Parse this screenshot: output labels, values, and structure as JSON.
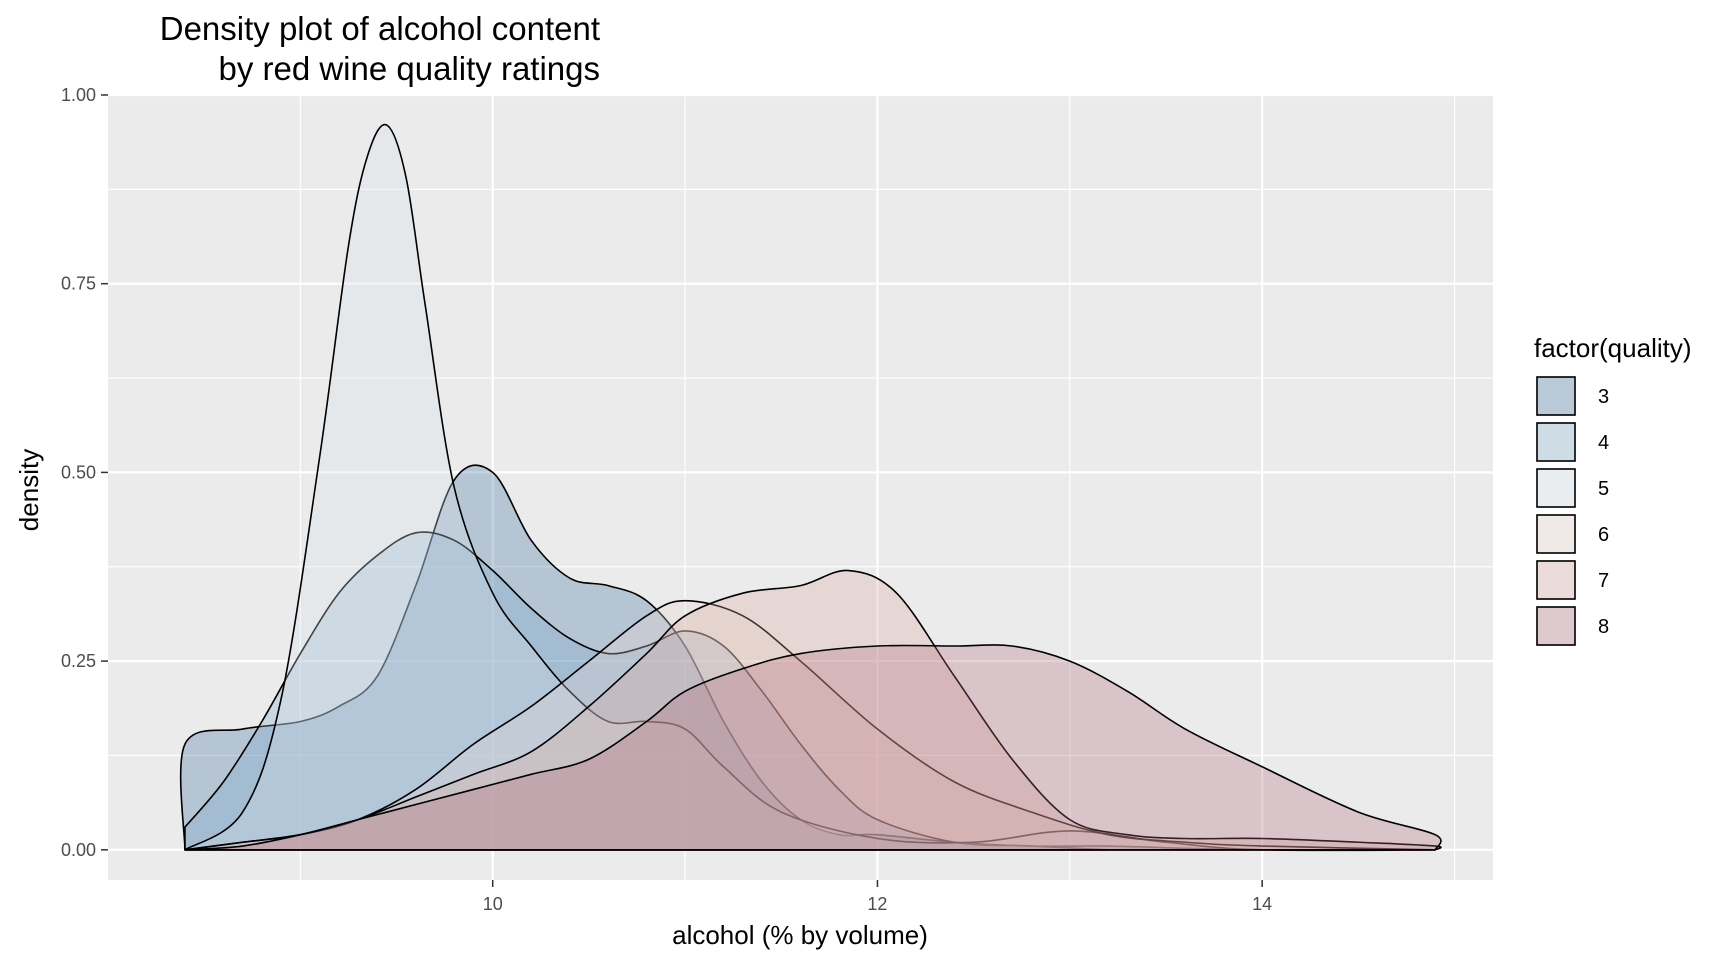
{
  "chart_data": {
    "type": "area",
    "title_lines": [
      "Density plot of alcohol content",
      "by red wine quality ratings"
    ],
    "xlabel": "alcohol (% by volume)",
    "ylabel": "density",
    "xlim": [
      8.0,
      15.2
    ],
    "ylim": [
      -0.04,
      1.0
    ],
    "x_ticks": [
      10,
      12,
      14
    ],
    "x_tick_labels": [
      "10",
      "12",
      "14"
    ],
    "y_ticks": [
      0.0,
      0.25,
      0.5,
      0.75,
      1.0
    ],
    "y_tick_labels": [
      "0.00",
      "0.25",
      "0.50",
      "0.75",
      "1.00"
    ],
    "x_minor_ticks": [
      9,
      11,
      13,
      15
    ],
    "y_minor_ticks": [
      0.125,
      0.375,
      0.625,
      0.875
    ],
    "grid": true,
    "legend_title": "factor(quality)",
    "legend_position": "right",
    "fill_opacity": 0.3,
    "series": [
      {
        "name": "3",
        "color": "#3c6e9e",
        "x": [
          8.4,
          8.4,
          8.7,
          9.0,
          9.2,
          9.4,
          9.6,
          9.8,
          10.0,
          10.2,
          10.4,
          10.6,
          10.8,
          11.0,
          11.2,
          11.4,
          11.6,
          11.8,
          12.0,
          12.4,
          12.8,
          13.2,
          13.6,
          14.0
        ],
        "y": [
          0.0,
          0.14,
          0.16,
          0.17,
          0.19,
          0.23,
          0.35,
          0.49,
          0.5,
          0.41,
          0.36,
          0.35,
          0.33,
          0.27,
          0.17,
          0.09,
          0.04,
          0.02,
          0.02,
          0.01,
          0.005,
          0.005,
          0.002,
          0.0
        ]
      },
      {
        "name": "4",
        "color": "#7ba9c9",
        "x": [
          8.4,
          8.6,
          8.8,
          9.0,
          9.2,
          9.4,
          9.6,
          9.8,
          10.0,
          10.2,
          10.4,
          10.6,
          10.8,
          11.0,
          11.2,
          11.4,
          11.6,
          11.8,
          12.0,
          12.4,
          12.8,
          13.2
        ],
        "y": [
          0.03,
          0.09,
          0.17,
          0.26,
          0.34,
          0.39,
          0.42,
          0.41,
          0.37,
          0.32,
          0.28,
          0.26,
          0.27,
          0.29,
          0.27,
          0.21,
          0.14,
          0.08,
          0.04,
          0.01,
          0.005,
          0.0
        ]
      },
      {
        "name": "5",
        "color": "#d8e2ea",
        "x": [
          8.4,
          8.7,
          8.9,
          9.1,
          9.25,
          9.35,
          9.45,
          9.55,
          9.65,
          9.8,
          10.0,
          10.2,
          10.4,
          10.6,
          10.8,
          11.0,
          11.2,
          11.5,
          12.0,
          12.5,
          13.0,
          13.5,
          14.0,
          14.9
        ],
        "y": [
          0.0,
          0.05,
          0.2,
          0.52,
          0.8,
          0.92,
          0.96,
          0.89,
          0.72,
          0.48,
          0.34,
          0.27,
          0.21,
          0.17,
          0.17,
          0.16,
          0.11,
          0.05,
          0.015,
          0.01,
          0.025,
          0.01,
          0.0,
          0.0
        ]
      },
      {
        "name": "6",
        "color": "#e9d7d2",
        "x": [
          8.4,
          8.7,
          9.0,
          9.3,
          9.6,
          9.9,
          10.2,
          10.5,
          10.8,
          11.0,
          11.3,
          11.6,
          12.0,
          12.4,
          12.8,
          13.2,
          13.6,
          14.0,
          14.9
        ],
        "y": [
          0.0,
          0.01,
          0.02,
          0.04,
          0.08,
          0.14,
          0.19,
          0.25,
          0.31,
          0.33,
          0.31,
          0.25,
          0.16,
          0.09,
          0.05,
          0.02,
          0.01,
          0.005,
          0.0
        ]
      },
      {
        "name": "7",
        "color": "#dba9a0",
        "x": [
          8.4,
          8.7,
          9.0,
          9.3,
          9.6,
          9.9,
          10.2,
          10.5,
          10.8,
          11.0,
          11.3,
          11.6,
          11.85,
          12.1,
          12.4,
          12.7,
          13.0,
          13.3,
          13.6,
          14.0,
          14.5,
          14.9,
          14.9
        ],
        "y": [
          0.0,
          0.01,
          0.02,
          0.04,
          0.07,
          0.1,
          0.13,
          0.19,
          0.26,
          0.31,
          0.34,
          0.35,
          0.37,
          0.34,
          0.23,
          0.12,
          0.04,
          0.02,
          0.015,
          0.015,
          0.01,
          0.005,
          0.0
        ]
      },
      {
        "name": "8",
        "color": "#b16a7c",
        "x": [
          8.4,
          8.7,
          9.0,
          9.3,
          9.6,
          9.9,
          10.2,
          10.5,
          10.8,
          11.0,
          11.3,
          11.6,
          12.0,
          12.4,
          12.7,
          13.0,
          13.3,
          13.6,
          14.0,
          14.5,
          14.9,
          14.9
        ],
        "y": [
          0.0,
          0.005,
          0.02,
          0.04,
          0.06,
          0.08,
          0.1,
          0.12,
          0.17,
          0.21,
          0.24,
          0.26,
          0.27,
          0.27,
          0.27,
          0.25,
          0.21,
          0.16,
          0.11,
          0.05,
          0.02,
          0.0
        ]
      }
    ]
  }
}
